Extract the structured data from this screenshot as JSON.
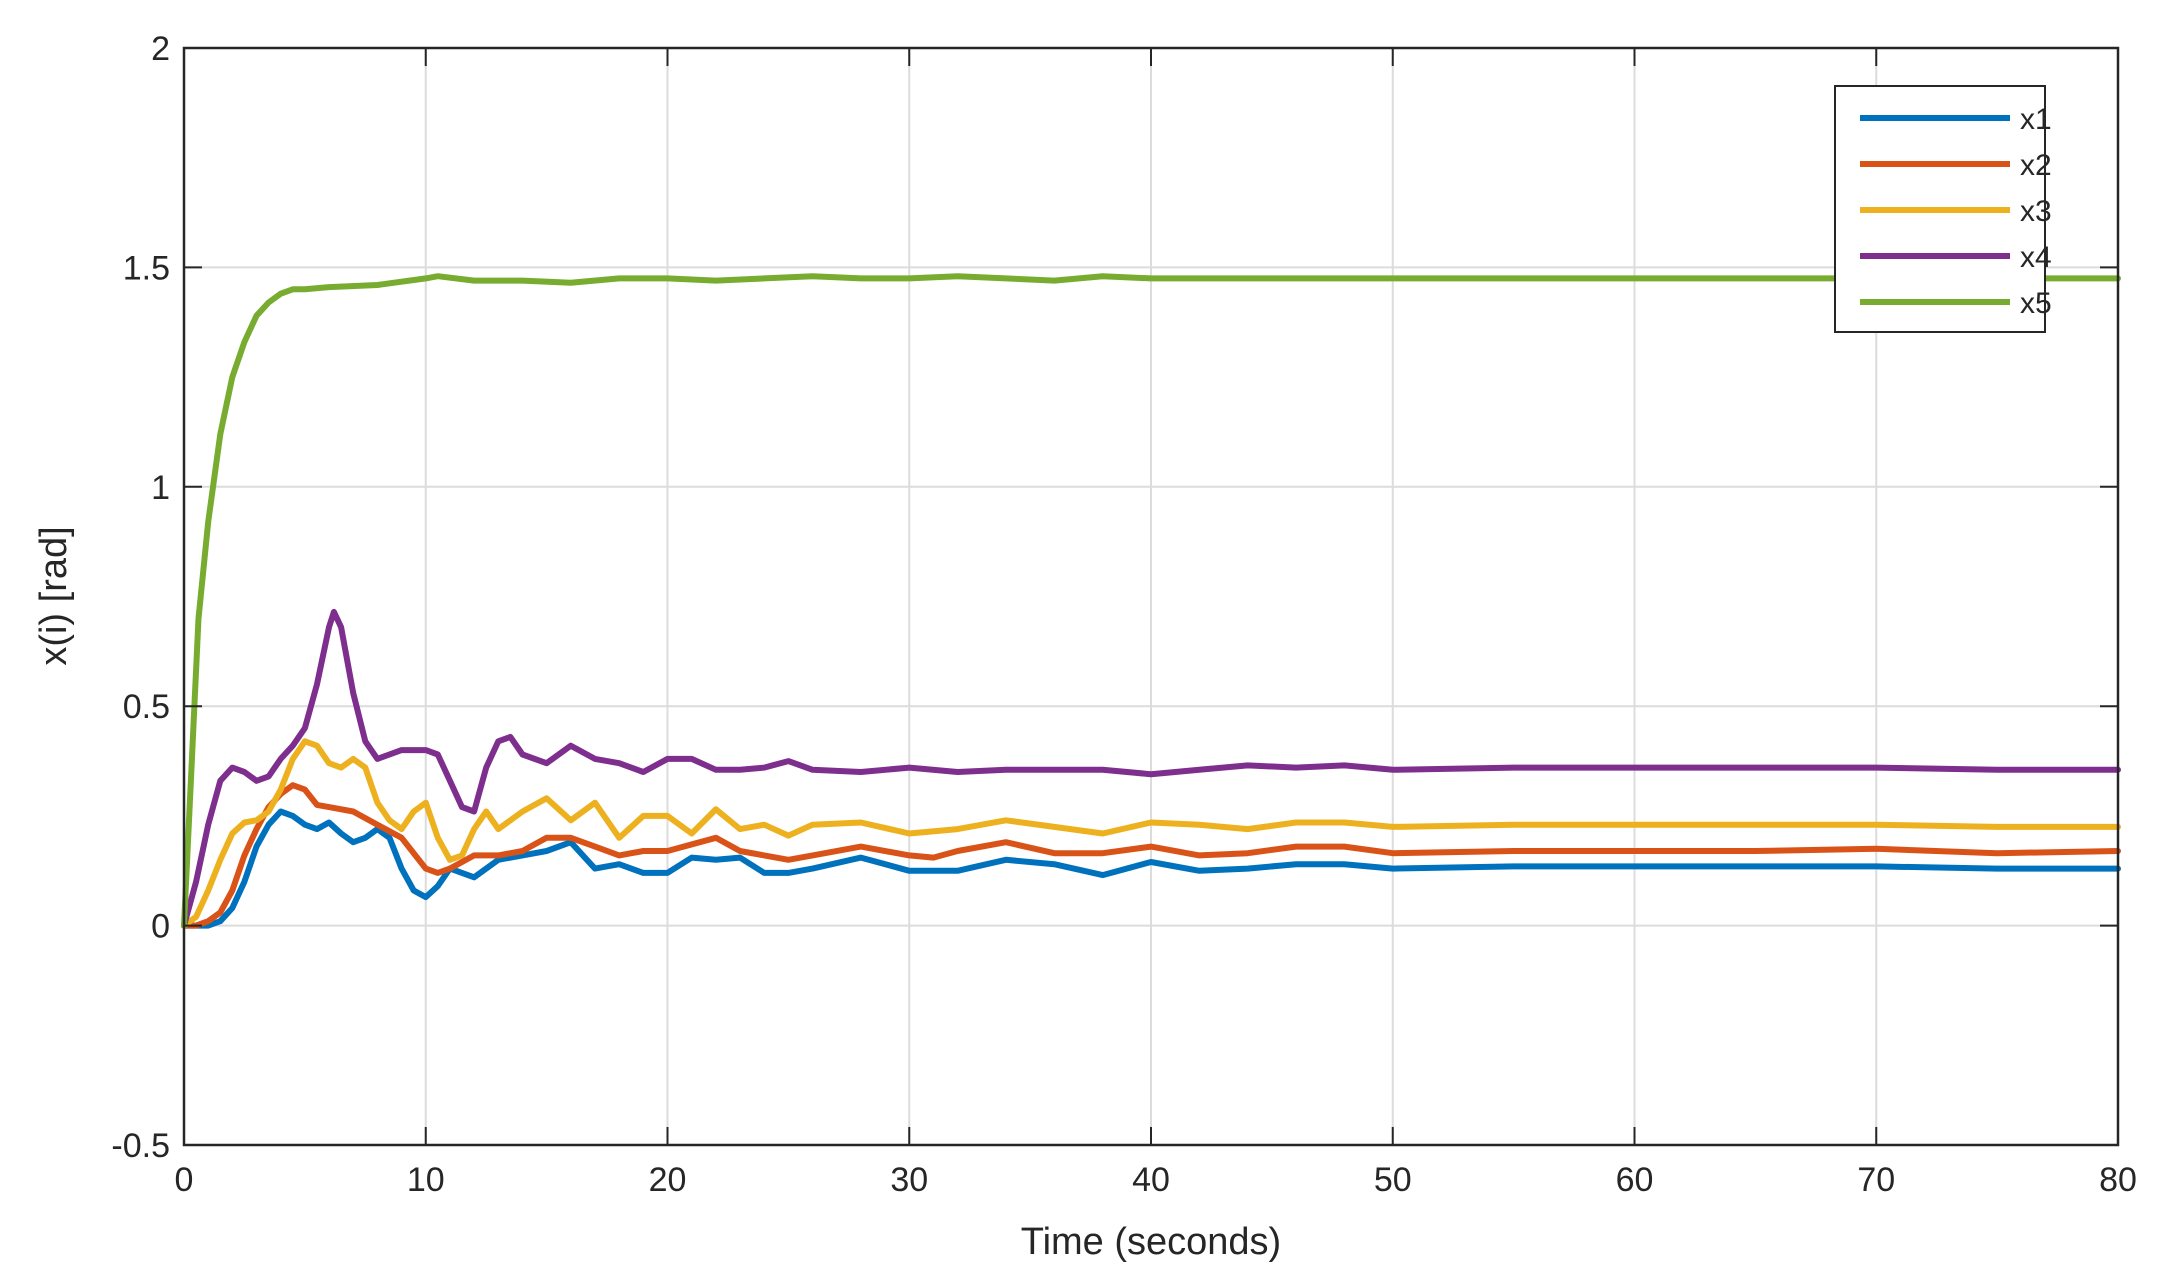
{
  "chart_data": {
    "type": "line",
    "title": "",
    "xlabel": "Time (seconds)",
    "ylabel": "x(i) [rad]",
    "xlim": [
      0,
      80
    ],
    "ylim": [
      -0.5,
      2
    ],
    "xticks": [
      "0",
      "10",
      "20",
      "30",
      "40",
      "50",
      "60",
      "70",
      "80"
    ],
    "yticks": [
      "-0.5",
      "0",
      "0.5",
      "1",
      "1.5",
      "2"
    ],
    "grid": true,
    "legend_position": "top-right",
    "series": [
      {
        "name": "x1",
        "color": "#0072BD",
        "points": [
          [
            0,
            0
          ],
          [
            1,
            0
          ],
          [
            1.5,
            0.01
          ],
          [
            2,
            0.04
          ],
          [
            2.5,
            0.1
          ],
          [
            3,
            0.18
          ],
          [
            3.5,
            0.23
          ],
          [
            4,
            0.26
          ],
          [
            4.5,
            0.25
          ],
          [
            5,
            0.23
          ],
          [
            5.5,
            0.22
          ],
          [
            6,
            0.235
          ],
          [
            6.5,
            0.21
          ],
          [
            7,
            0.19
          ],
          [
            7.5,
            0.2
          ],
          [
            8,
            0.22
          ],
          [
            8.5,
            0.2
          ],
          [
            9,
            0.13
          ],
          [
            9.5,
            0.08
          ],
          [
            10,
            0.065
          ],
          [
            10.5,
            0.09
          ],
          [
            11,
            0.13
          ],
          [
            12,
            0.11
          ],
          [
            13,
            0.15
          ],
          [
            14,
            0.16
          ],
          [
            15,
            0.17
          ],
          [
            16,
            0.19
          ],
          [
            17,
            0.13
          ],
          [
            18,
            0.14
          ],
          [
            19,
            0.12
          ],
          [
            20,
            0.12
          ],
          [
            21,
            0.155
          ],
          [
            22,
            0.15
          ],
          [
            23,
            0.155
          ],
          [
            24,
            0.12
          ],
          [
            25,
            0.12
          ],
          [
            26,
            0.13
          ],
          [
            28,
            0.155
          ],
          [
            30,
            0.125
          ],
          [
            32,
            0.125
          ],
          [
            34,
            0.15
          ],
          [
            36,
            0.14
          ],
          [
            38,
            0.115
          ],
          [
            40,
            0.145
          ],
          [
            42,
            0.125
          ],
          [
            44,
            0.13
          ],
          [
            46,
            0.14
          ],
          [
            48,
            0.14
          ],
          [
            50,
            0.13
          ],
          [
            55,
            0.135
          ],
          [
            60,
            0.135
          ],
          [
            65,
            0.135
          ],
          [
            70,
            0.135
          ],
          [
            75,
            0.13
          ],
          [
            80,
            0.13
          ]
        ]
      },
      {
        "name": "x2",
        "color": "#D95319",
        "points": [
          [
            0,
            0
          ],
          [
            0.5,
            0
          ],
          [
            1,
            0.01
          ],
          [
            1.5,
            0.03
          ],
          [
            2,
            0.08
          ],
          [
            2.5,
            0.16
          ],
          [
            3,
            0.22
          ],
          [
            3.5,
            0.27
          ],
          [
            4,
            0.3
          ],
          [
            4.5,
            0.32
          ],
          [
            5,
            0.31
          ],
          [
            5.5,
            0.275
          ],
          [
            6,
            0.27
          ],
          [
            7,
            0.26
          ],
          [
            8,
            0.23
          ],
          [
            9,
            0.2
          ],
          [
            10,
            0.13
          ],
          [
            10.5,
            0.12
          ],
          [
            11,
            0.13
          ],
          [
            12,
            0.16
          ],
          [
            13,
            0.16
          ],
          [
            14,
            0.17
          ],
          [
            15,
            0.2
          ],
          [
            16,
            0.2
          ],
          [
            17,
            0.18
          ],
          [
            18,
            0.16
          ],
          [
            19,
            0.17
          ],
          [
            20,
            0.17
          ],
          [
            22,
            0.2
          ],
          [
            23,
            0.17
          ],
          [
            24,
            0.16
          ],
          [
            25,
            0.15
          ],
          [
            26,
            0.16
          ],
          [
            28,
            0.18
          ],
          [
            30,
            0.16
          ],
          [
            31,
            0.155
          ],
          [
            32,
            0.17
          ],
          [
            34,
            0.19
          ],
          [
            36,
            0.165
          ],
          [
            38,
            0.165
          ],
          [
            40,
            0.18
          ],
          [
            42,
            0.16
          ],
          [
            44,
            0.165
          ],
          [
            46,
            0.18
          ],
          [
            48,
            0.18
          ],
          [
            50,
            0.165
          ],
          [
            55,
            0.17
          ],
          [
            60,
            0.17
          ],
          [
            65,
            0.17
          ],
          [
            70,
            0.175
          ],
          [
            75,
            0.165
          ],
          [
            80,
            0.17
          ]
        ]
      },
      {
        "name": "x3",
        "color": "#EDB120",
        "points": [
          [
            0,
            0
          ],
          [
            0.5,
            0.02
          ],
          [
            1,
            0.08
          ],
          [
            1.5,
            0.15
          ],
          [
            2,
            0.21
          ],
          [
            2.5,
            0.235
          ],
          [
            3,
            0.24
          ],
          [
            3.5,
            0.26
          ],
          [
            4,
            0.31
          ],
          [
            4.5,
            0.38
          ],
          [
            5,
            0.42
          ],
          [
            5.5,
            0.41
          ],
          [
            6,
            0.37
          ],
          [
            6.5,
            0.36
          ],
          [
            7,
            0.38
          ],
          [
            7.5,
            0.36
          ],
          [
            8,
            0.28
          ],
          [
            8.5,
            0.24
          ],
          [
            9,
            0.22
          ],
          [
            9.5,
            0.26
          ],
          [
            10,
            0.28
          ],
          [
            10.5,
            0.2
          ],
          [
            11,
            0.15
          ],
          [
            11.5,
            0.16
          ],
          [
            12,
            0.22
          ],
          [
            12.5,
            0.26
          ],
          [
            13,
            0.22
          ],
          [
            14,
            0.26
          ],
          [
            15,
            0.29
          ],
          [
            16,
            0.24
          ],
          [
            17,
            0.28
          ],
          [
            18,
            0.2
          ],
          [
            19,
            0.25
          ],
          [
            20,
            0.25
          ],
          [
            21,
            0.21
          ],
          [
            22,
            0.265
          ],
          [
            23,
            0.22
          ],
          [
            24,
            0.23
          ],
          [
            25,
            0.205
          ],
          [
            26,
            0.23
          ],
          [
            28,
            0.235
          ],
          [
            30,
            0.21
          ],
          [
            32,
            0.22
          ],
          [
            34,
            0.24
          ],
          [
            36,
            0.225
          ],
          [
            38,
            0.21
          ],
          [
            40,
            0.235
          ],
          [
            42,
            0.23
          ],
          [
            44,
            0.22
          ],
          [
            46,
            0.235
          ],
          [
            48,
            0.235
          ],
          [
            50,
            0.225
          ],
          [
            55,
            0.23
          ],
          [
            60,
            0.23
          ],
          [
            65,
            0.23
          ],
          [
            70,
            0.23
          ],
          [
            75,
            0.225
          ],
          [
            80,
            0.225
          ]
        ]
      },
      {
        "name": "x4",
        "color": "#7E2F8E",
        "points": [
          [
            0,
            0
          ],
          [
            0.5,
            0.1
          ],
          [
            1,
            0.23
          ],
          [
            1.5,
            0.33
          ],
          [
            2,
            0.36
          ],
          [
            2.5,
            0.35
          ],
          [
            3,
            0.33
          ],
          [
            3.5,
            0.34
          ],
          [
            4,
            0.38
          ],
          [
            4.5,
            0.41
          ],
          [
            5,
            0.45
          ],
          [
            5.5,
            0.55
          ],
          [
            6,
            0.68
          ],
          [
            6.2,
            0.715
          ],
          [
            6.5,
            0.68
          ],
          [
            7,
            0.53
          ],
          [
            7.5,
            0.42
          ],
          [
            8,
            0.38
          ],
          [
            9,
            0.4
          ],
          [
            10,
            0.4
          ],
          [
            10.5,
            0.39
          ],
          [
            11,
            0.33
          ],
          [
            11.5,
            0.27
          ],
          [
            12,
            0.26
          ],
          [
            12.5,
            0.36
          ],
          [
            13,
            0.42
          ],
          [
            13.5,
            0.43
          ],
          [
            14,
            0.39
          ],
          [
            15,
            0.37
          ],
          [
            16,
            0.41
          ],
          [
            17,
            0.38
          ],
          [
            18,
            0.37
          ],
          [
            19,
            0.35
          ],
          [
            20,
            0.38
          ],
          [
            21,
            0.38
          ],
          [
            22,
            0.355
          ],
          [
            23,
            0.355
          ],
          [
            24,
            0.36
          ],
          [
            25,
            0.375
          ],
          [
            26,
            0.355
          ],
          [
            28,
            0.35
          ],
          [
            30,
            0.36
          ],
          [
            32,
            0.35
          ],
          [
            34,
            0.355
          ],
          [
            36,
            0.355
          ],
          [
            38,
            0.355
          ],
          [
            40,
            0.345
          ],
          [
            42,
            0.355
          ],
          [
            44,
            0.365
          ],
          [
            46,
            0.36
          ],
          [
            48,
            0.365
          ],
          [
            50,
            0.355
          ],
          [
            55,
            0.36
          ],
          [
            60,
            0.36
          ],
          [
            65,
            0.36
          ],
          [
            70,
            0.36
          ],
          [
            75,
            0.355
          ],
          [
            80,
            0.355
          ]
        ]
      },
      {
        "name": "x5",
        "color": "#77AC30",
        "points": [
          [
            0,
            0
          ],
          [
            0.3,
            0.35
          ],
          [
            0.6,
            0.7
          ],
          [
            1,
            0.92
          ],
          [
            1.5,
            1.12
          ],
          [
            2,
            1.25
          ],
          [
            2.5,
            1.33
          ],
          [
            3,
            1.39
          ],
          [
            3.5,
            1.42
          ],
          [
            4,
            1.44
          ],
          [
            4.5,
            1.45
          ],
          [
            5,
            1.45
          ],
          [
            6,
            1.455
          ],
          [
            8,
            1.46
          ],
          [
            10,
            1.475
          ],
          [
            10.5,
            1.48
          ],
          [
            12,
            1.47
          ],
          [
            14,
            1.47
          ],
          [
            16,
            1.465
          ],
          [
            18,
            1.475
          ],
          [
            20,
            1.475
          ],
          [
            22,
            1.47
          ],
          [
            24,
            1.475
          ],
          [
            26,
            1.48
          ],
          [
            28,
            1.475
          ],
          [
            30,
            1.475
          ],
          [
            32,
            1.48
          ],
          [
            34,
            1.475
          ],
          [
            36,
            1.47
          ],
          [
            38,
            1.48
          ],
          [
            40,
            1.475
          ],
          [
            42,
            1.475
          ],
          [
            44,
            1.475
          ],
          [
            46,
            1.475
          ],
          [
            48,
            1.475
          ],
          [
            50,
            1.475
          ],
          [
            55,
            1.475
          ],
          [
            60,
            1.475
          ],
          [
            65,
            1.475
          ],
          [
            70,
            1.475
          ],
          [
            75,
            1.475
          ],
          [
            80,
            1.475
          ]
        ]
      }
    ]
  }
}
